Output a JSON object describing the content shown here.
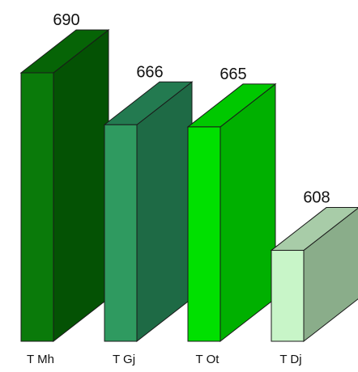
{
  "chart_data": {
    "type": "bar",
    "style": "3d-bars",
    "categories": [
      "T Mh",
      "T Gj",
      "T Ot",
      "T Dj"
    ],
    "values": [
      690,
      666,
      665,
      608
    ],
    "value_labels": [
      "690",
      "666",
      "665",
      "608"
    ],
    "title": "",
    "xlabel": "",
    "ylabel": "",
    "ylim": [
      566,
      690
    ],
    "grid": false,
    "legend": "none",
    "colors": {
      "front": [
        "#0a7a0a",
        "#2f9a60",
        "#00e000",
        "#c8f5c8"
      ],
      "side": [
        "#045204",
        "#1e6a45",
        "#00b000",
        "#8aad8a"
      ],
      "top": [
        "#066406",
        "#237a50",
        "#00c800",
        "#a8cca8"
      ],
      "outline": "#1a1a1a"
    }
  }
}
